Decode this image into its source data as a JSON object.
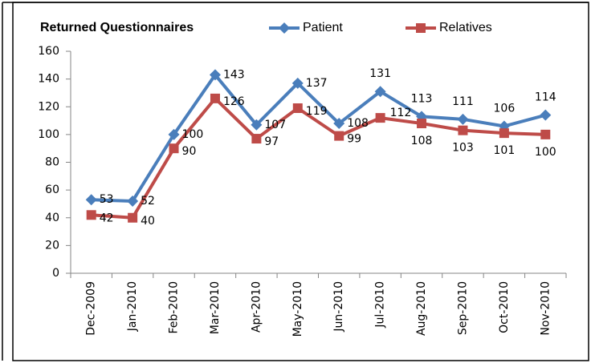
{
  "chart_data": {
    "type": "line",
    "title": "Returned Questionnaires",
    "categories": [
      "Dec-2009",
      "Jan-2010",
      "Feb-2010",
      "Mar-2010",
      "Apr-2010",
      "May-2010",
      "Jun-2010",
      "Jul-2010",
      "Aug-2010",
      "Sep-2010",
      "Oct-2010",
      "Nov-2010"
    ],
    "series": [
      {
        "name": "Patient",
        "color": "#4a7ebb",
        "marker": "diamond",
        "values": [
          53,
          52,
          100,
          143,
          107,
          137,
          108,
          131,
          113,
          111,
          106,
          114
        ]
      },
      {
        "name": "Relatives",
        "color": "#be4b48",
        "marker": "square",
        "values": [
          42,
          40,
          90,
          126,
          97,
          119,
          99,
          112,
          108,
          103,
          101,
          100
        ]
      }
    ],
    "ylim": [
      0,
      160
    ],
    "yticks": [
      0,
      20,
      40,
      60,
      80,
      100,
      120,
      140,
      160
    ],
    "grid": false,
    "legend": "top"
  }
}
